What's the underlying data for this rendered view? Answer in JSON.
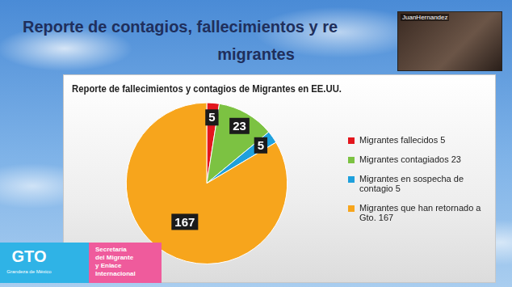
{
  "page": {
    "title_lines": [
      "Reporte de contagios, fallecimientos y re",
      "migrantes"
    ],
    "presenter": "JuanHernandez",
    "logo": {
      "mark": "GTO",
      "tagline": "Grandeza de México",
      "agency_lines": [
        "Secretaría",
        "del Migrante",
        "y Enlace",
        "Internacional"
      ]
    }
  },
  "chart_data": {
    "type": "pie",
    "title": "Reporte de fallecimientos y contagios de Migrantes en EE.UU.",
    "categories": [
      "Migrantes fallecidos  5",
      "Migrantes contagiados  23",
      "Migrantes en sospecha de contagio  5",
      "Migrantes que han retornado a Gto. 167"
    ],
    "values": [
      5,
      23,
      5,
      167
    ],
    "colors": [
      "#e3161d",
      "#7cc242",
      "#1ea0dc",
      "#f7a51c"
    ],
    "data_labels": true,
    "legend": "right"
  }
}
